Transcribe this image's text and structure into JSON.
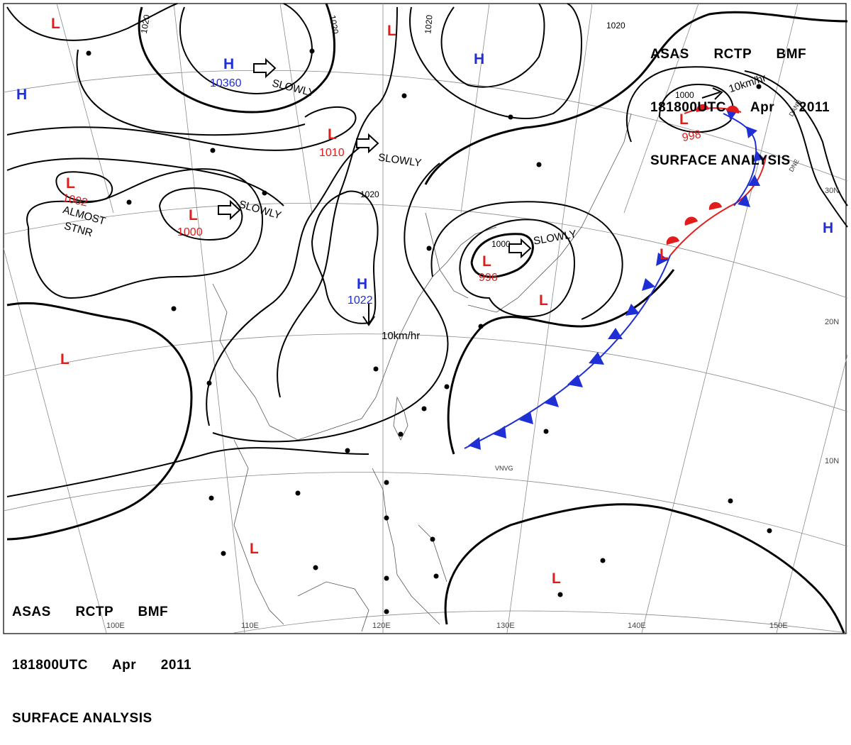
{
  "title_top": {
    "line1": "ASAS      RCTP      BMF",
    "line2": "181800UTC      Apr      2011",
    "line3": "SURFACE ANALYSIS"
  },
  "title_bottom": {
    "line1": "ASAS      RCTP      BMF",
    "line2": "181800UTC      Apr      2011",
    "line3": "SURFACE ANALYSIS"
  },
  "colors": {
    "high": "#1f2fd6",
    "low": "#e21b1b",
    "isobar": "#000000",
    "grid": "#8a8a8a",
    "coast": "#555555",
    "cold_front": "#1f2fd6",
    "warm_front": "#e21b1b"
  },
  "longitude_labels": [
    "100E",
    "110E",
    "120E",
    "130E",
    "140E",
    "150E"
  ],
  "latitude_labels": [
    "30N",
    "20N",
    "10N"
  ],
  "isobar_labels": [
    "1020",
    "1020",
    "1020",
    "1020",
    "1020",
    "1000",
    "1000"
  ],
  "pressure_centers": [
    {
      "type": "H",
      "value": "10360"
    },
    {
      "type": "H",
      "value": ""
    },
    {
      "type": "H",
      "value": ""
    },
    {
      "type": "H",
      "value": ""
    },
    {
      "type": "H",
      "value": "1022"
    },
    {
      "type": "L",
      "value": ""
    },
    {
      "type": "L",
      "value": "1010"
    },
    {
      "type": "L",
      "value": "1002"
    },
    {
      "type": "L",
      "value": "1000"
    },
    {
      "type": "L",
      "value": "996"
    },
    {
      "type": "L",
      "value": "998"
    },
    {
      "type": "L",
      "value": ""
    },
    {
      "type": "L",
      "value": ""
    },
    {
      "type": "L",
      "value": ""
    },
    {
      "type": "L",
      "value": ""
    },
    {
      "type": "L",
      "value": ""
    },
    {
      "type": "L",
      "value": ""
    }
  ],
  "movement_labels": [
    "SLOWLY",
    "SLOWLY",
    "SLOWLY",
    "SLOWLY",
    "10km/hr",
    "10km/hr",
    "ALMOST",
    "STNR"
  ],
  "station_labels": [
    "VNVG",
    "DANN",
    "DNE"
  ]
}
